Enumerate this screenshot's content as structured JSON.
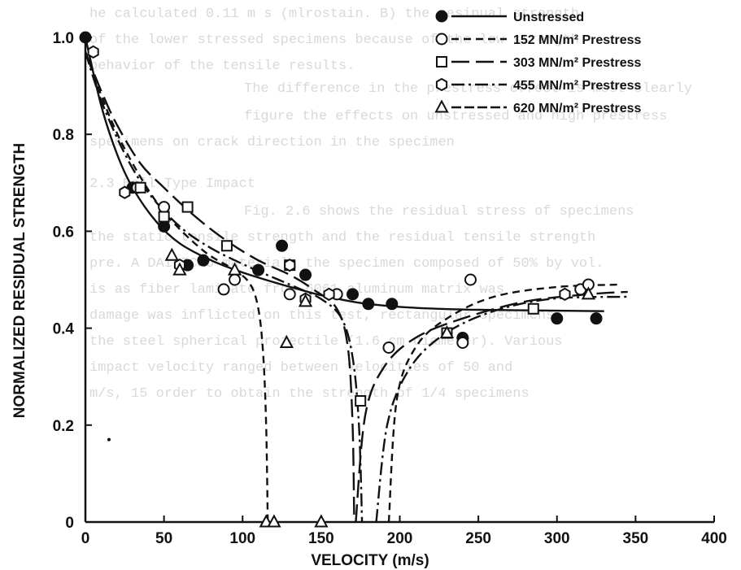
{
  "page": {
    "background_text": [
      "he calculated 0.11 m s (mlrostain. B) the resinual strength",
      "of the lower stressed specimens because of the low strength",
      "behavior of the tensile results.",
      "    The difference in the prestress effect is most clearly",
      "    figure the effects on unstressed and high prestress",
      "specimens on crack direction in the specimen",
      "2.3    Ball Type Impact",
      "    Fig.   2.6 shows the residual stress of specimens",
      "the static tensile strength and the residual tensile strength",
      "pre. A DAILICKO material, the specimen composed of 50% by vol.",
      "is as fiber laminate from 6061 aluminum matrix was",
      "damage was inflicted on this test, rectangular specimens",
      "the steel spherical projectile (1.6 cm diameter). Various",
      "impact velocity ranged between velocities of 50 and",
      "m/s, 15 order to obtain the strength of 1/4 specimens"
    ]
  },
  "chart_data": {
    "type": "scatter",
    "title": "",
    "xlabel": "VELOCITY (m/s)",
    "ylabel": "NORMALIZED RESIDUAL STRENGTH",
    "xlim": [
      0,
      400
    ],
    "ylim": [
      0,
      1.0
    ],
    "xticks": [
      0,
      50,
      100,
      150,
      200,
      250,
      300,
      350,
      400
    ],
    "yticks": [
      0,
      0.2,
      0.4,
      0.6,
      0.8,
      1.0
    ],
    "xtick_labels": [
      "0",
      "50",
      "100",
      "150",
      "200",
      "250",
      "300",
      "350",
      "400"
    ],
    "ytick_labels": [
      "0",
      "0.2",
      "0.4",
      "0.6",
      "0.8",
      "1.0"
    ],
    "grid": false,
    "legend_position": "top-right",
    "series": [
      {
        "name": "Unstressed",
        "marker": "filled-circle",
        "line": "solid",
        "points": [
          [
            0,
            1.0
          ],
          [
            30,
            0.69
          ],
          [
            50,
            0.61
          ],
          [
            65,
            0.53
          ],
          [
            75,
            0.54
          ],
          [
            110,
            0.52
          ],
          [
            125,
            0.57
          ],
          [
            140,
            0.51
          ],
          [
            170,
            0.47
          ],
          [
            180,
            0.45
          ],
          [
            195,
            0.45
          ],
          [
            240,
            0.38
          ],
          [
            300,
            0.42
          ],
          [
            325,
            0.42
          ]
        ],
        "curves": [
          [
            [
              0,
              1.0
            ],
            [
              10,
              0.86
            ],
            [
              20,
              0.76
            ],
            [
              30,
              0.69
            ],
            [
              45,
              0.62
            ],
            [
              60,
              0.575
            ],
            [
              80,
              0.54
            ],
            [
              100,
              0.515
            ],
            [
              125,
              0.49
            ],
            [
              150,
              0.468
            ],
            [
              175,
              0.452
            ],
            [
              200,
              0.444
            ],
            [
              225,
              0.44
            ],
            [
              250,
              0.438
            ],
            [
              300,
              0.436
            ],
            [
              330,
              0.435
            ]
          ]
        ]
      },
      {
        "name": "152 MN/m² Prestress",
        "marker": "open-circle",
        "line": "dashed",
        "points": [
          [
            33,
            0.69
          ],
          [
            50,
            0.65
          ],
          [
            88,
            0.48
          ],
          [
            95,
            0.5
          ],
          [
            130,
            0.47
          ],
          [
            160,
            0.47
          ],
          [
            193,
            0.36
          ],
          [
            240,
            0.37
          ],
          [
            245,
            0.5
          ],
          [
            315,
            0.48
          ],
          [
            320,
            0.49
          ]
        ],
        "curves": [
          [
            [
              0,
              0.97
            ],
            [
              15,
              0.84
            ],
            [
              30,
              0.74
            ],
            [
              50,
              0.64
            ],
            [
              75,
              0.56
            ],
            [
              95,
              0.52
            ],
            [
              105,
              0.49
            ],
            [
              110,
              0.44
            ],
            [
              113,
              0.35
            ],
            [
              115,
              0.2
            ],
            [
              116,
              0
            ]
          ],
          [
            [
              193,
              0
            ],
            [
              198,
              0.25
            ],
            [
              210,
              0.36
            ],
            [
              230,
              0.42
            ],
            [
              260,
              0.465
            ],
            [
              300,
              0.485
            ],
            [
              340,
              0.49
            ]
          ]
        ]
      },
      {
        "name": "303 MN/m² Prestress",
        "marker": "open-square",
        "line": "long-dash",
        "points": [
          [
            35,
            0.69
          ],
          [
            50,
            0.63
          ],
          [
            65,
            0.65
          ],
          [
            90,
            0.57
          ],
          [
            130,
            0.53
          ],
          [
            175,
            0.25
          ],
          [
            230,
            0.39
          ],
          [
            285,
            0.44
          ]
        ],
        "curves": [
          [
            [
              0,
              0.97
            ],
            [
              10,
              0.89
            ],
            [
              20,
              0.82
            ],
            [
              35,
              0.74
            ],
            [
              50,
              0.69
            ],
            [
              70,
              0.63
            ],
            [
              90,
              0.58
            ],
            [
              110,
              0.54
            ],
            [
              130,
              0.51
            ],
            [
              145,
              0.48
            ],
            [
              160,
              0.44
            ],
            [
              167,
              0.36
            ],
            [
              170,
              0.2
            ],
            [
              171,
              0
            ]
          ],
          [
            [
              172,
              0
            ],
            [
              178,
              0.22
            ],
            [
              190,
              0.32
            ],
            [
              210,
              0.38
            ],
            [
              240,
              0.42
            ],
            [
              280,
              0.455
            ],
            [
              320,
              0.47
            ],
            [
              345,
              0.475
            ]
          ]
        ]
      },
      {
        "name": "455 MN/m² Prestress",
        "marker": "open-hexagon",
        "line": "dash-dot",
        "points": [
          [
            5,
            0.97
          ],
          [
            25,
            0.68
          ],
          [
            60,
            0.53
          ],
          [
            130,
            0.53
          ],
          [
            140,
            0.46
          ],
          [
            155,
            0.47
          ],
          [
            305,
            0.47
          ]
        ],
        "curves": [
          [
            [
              0,
              0.97
            ],
            [
              10,
              0.87
            ],
            [
              25,
              0.76
            ],
            [
              40,
              0.68
            ],
            [
              60,
              0.61
            ],
            [
              80,
              0.565
            ],
            [
              105,
              0.525
            ],
            [
              130,
              0.49
            ],
            [
              150,
              0.46
            ],
            [
              163,
              0.42
            ],
            [
              170,
              0.34
            ],
            [
              174,
              0.2
            ],
            [
              176,
              0
            ]
          ],
          [
            [
              185,
              0
            ],
            [
              192,
              0.2
            ],
            [
              205,
              0.31
            ],
            [
              225,
              0.38
            ],
            [
              255,
              0.43
            ],
            [
              295,
              0.46
            ],
            [
              345,
              0.465
            ]
          ]
        ]
      },
      {
        "name": "620 MN/m² Prestress",
        "marker": "open-triangle",
        "line": "dash-dash",
        "points": [
          [
            55,
            0.55
          ],
          [
            60,
            0.52
          ],
          [
            95,
            0.52
          ],
          [
            128,
            0.37
          ],
          [
            140,
            0.455
          ],
          [
            115,
            0
          ],
          [
            120,
            0
          ],
          [
            150,
            0
          ],
          [
            230,
            0.39
          ],
          [
            320,
            0.47
          ]
        ],
        "curves": []
      }
    ],
    "extra_marks": [
      {
        "shape": "dot",
        "x": 15,
        "y": 0.17
      }
    ]
  }
}
